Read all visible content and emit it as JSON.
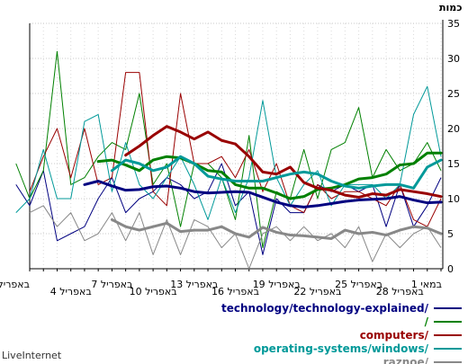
{
  "brand": "LiveInternet",
  "chart_data": {
    "type": "line",
    "ylabel": "כמות",
    "ylim": [
      0,
      35
    ],
    "yticks": [
      0,
      5,
      10,
      15,
      20,
      25,
      30,
      35
    ],
    "x": [
      "1 במאי",
      "28 באפריל",
      "25 באפריל",
      "22 באפריל",
      "19 באפריל",
      "16 באפריל",
      "13 באפריל",
      "10 באפריל",
      "7 באפריל",
      "4 באפריל",
      "1 באפריל"
    ],
    "x_index": [
      0,
      3,
      6,
      9,
      12,
      15,
      18,
      21,
      24,
      27,
      30
    ],
    "grid": true,
    "legend_position": "bottom-right",
    "series": [
      {
        "name": "technology/technology-explained/",
        "color": "#000080",
        "raw": [
          13,
          9,
          6,
          12,
          6,
          12,
          11,
          12,
          11,
          12,
          8,
          8,
          10,
          2,
          11,
          9,
          15,
          11,
          10,
          12,
          13,
          11,
          10,
          8,
          13,
          10,
          6,
          5,
          4,
          14,
          9,
          12
        ],
        "avg": [
          9.5,
          9.4,
          9.8,
          10.3,
          10.0,
          9.9,
          9.8,
          9.6,
          9.3,
          9.0,
          8.8,
          9.0,
          9.5,
          10.2,
          10.9,
          11.0,
          10.9,
          10.8,
          11.0,
          11.5,
          11.8,
          11.7,
          11.3,
          11.2,
          11.8,
          12.5,
          12.0
        ]
      },
      {
        "name": "/",
        "color": "#008000",
        "raw": [
          14,
          18,
          15,
          14,
          17,
          13,
          23,
          18,
          17,
          10,
          17,
          10,
          11,
          3,
          19,
          7,
          13,
          15,
          15,
          6,
          15,
          12,
          25,
          17,
          18,
          16,
          13,
          12,
          31,
          14,
          10,
          15
        ],
        "avg": [
          16.5,
          16.5,
          15.0,
          14.8,
          13.5,
          13.0,
          12.8,
          12.0,
          11.5,
          11.3,
          10.3,
          10.0,
          10.8,
          11.5,
          11.5,
          12.0,
          13.8,
          14.0,
          15.0,
          15.8,
          16.0,
          15.5,
          14.0,
          14.8,
          15.5,
          15.3
        ]
      },
      {
        "name": "computers/",
        "color": "#990000",
        "raw": [
          10,
          6,
          7,
          12,
          9,
          10,
          11,
          11,
          10,
          12,
          8,
          9,
          15,
          11,
          17,
          13,
          16,
          15,
          15,
          25,
          9,
          11,
          28,
          28,
          13,
          12,
          20,
          13,
          20,
          16,
          11
        ],
        "avg": [
          10.3,
          10.7,
          11.0,
          11.3,
          10.5,
          10.7,
          10.2,
          10.5,
          11.2,
          11.5,
          12.3,
          14.5,
          13.5,
          13.8,
          16.0,
          17.8,
          18.3,
          19.5,
          18.5,
          19.5,
          20.3,
          19.0,
          17.5,
          16.2
        ]
      },
      {
        "name": "operating-systems/windows/",
        "color": "#009999",
        "raw": [
          16,
          26,
          22,
          12,
          10,
          12,
          12,
          12,
          9,
          14,
          12,
          9,
          13,
          24,
          13,
          8,
          13,
          7,
          12,
          16,
          13,
          10,
          12,
          18,
          11,
          22,
          21,
          10,
          10,
          17,
          10,
          8
        ],
        "avg": [
          15.5,
          14.5,
          11.5,
          12.0,
          12.0,
          11.8,
          11.5,
          11.8,
          12.5,
          13.5,
          13.8,
          13.5,
          13.0,
          12.5,
          12.5,
          12.5,
          12.8,
          13.2,
          15.0,
          16.0,
          14.5,
          14.0,
          15.0,
          15.5,
          14.0
        ]
      },
      {
        "name": "raznoe/",
        "color": "#888888",
        "raw": [
          3,
          6,
          5,
          3,
          5,
          1,
          6,
          3,
          5,
          4,
          6,
          4,
          6,
          5,
          0,
          5,
          3,
          6,
          7,
          2,
          7,
          2,
          8,
          4,
          8,
          5,
          4,
          8,
          6,
          9,
          8
        ],
        "avg": [
          5.0,
          5.8,
          6.0,
          5.5,
          4.8,
          5.2,
          5.0,
          5.5,
          4.3,
          4.5,
          4.7,
          4.8,
          5.2,
          5.9,
          4.5,
          5.0,
          6.0,
          5.5,
          5.5,
          5.3,
          6.5,
          6.0,
          5.5,
          6.0,
          7.0
        ]
      }
    ]
  }
}
